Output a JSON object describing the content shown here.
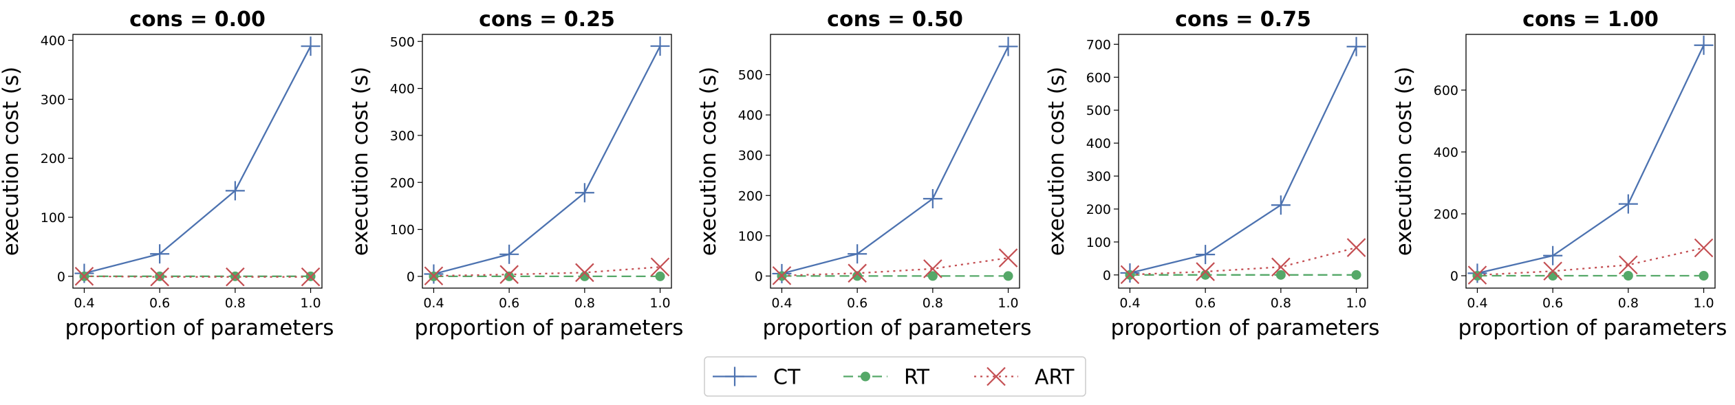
{
  "chart_data": [
    {
      "type": "line",
      "title": "cons = 0.00",
      "xlabel": "proportion of parameters",
      "ylabel": "execution cost (s)",
      "x": [
        0.4,
        0.6,
        0.8,
        1.0
      ],
      "xticks": [
        "0.4",
        "0.6",
        "0.8",
        "1.0"
      ],
      "ylim": [
        -20,
        410
      ],
      "yticks": [
        0,
        100,
        200,
        300,
        400
      ],
      "series": [
        {
          "name": "CT",
          "values": [
            5,
            38,
            145,
            390
          ]
        },
        {
          "name": "RT",
          "values": [
            0,
            0,
            0,
            0
          ]
        },
        {
          "name": "ART",
          "values": [
            0,
            -1,
            -1,
            -1
          ]
        }
      ]
    },
    {
      "type": "line",
      "title": "cons = 0.25",
      "xlabel": "proportion of parameters",
      "ylabel": "execution cost (s)",
      "x": [
        0.4,
        0.6,
        0.8,
        1.0
      ],
      "xticks": [
        "0.4",
        "0.6",
        "0.8",
        "1.0"
      ],
      "ylim": [
        -25,
        515
      ],
      "yticks": [
        0,
        100,
        200,
        300,
        400,
        500
      ],
      "series": [
        {
          "name": "CT",
          "values": [
            5,
            47,
            178,
            490
          ]
        },
        {
          "name": "RT",
          "values": [
            0,
            0,
            0,
            0
          ]
        },
        {
          "name": "ART",
          "values": [
            1,
            4,
            8,
            20
          ]
        }
      ]
    },
    {
      "type": "line",
      "title": "cons = 0.50",
      "xlabel": "proportion of parameters",
      "ylabel": "execution cost (s)",
      "x": [
        0.4,
        0.6,
        0.8,
        1.0
      ],
      "xticks": [
        "0.4",
        "0.6",
        "0.8",
        "1.0"
      ],
      "ylim": [
        -30,
        600
      ],
      "yticks": [
        0,
        100,
        200,
        300,
        400,
        500
      ],
      "series": [
        {
          "name": "CT",
          "values": [
            6,
            55,
            192,
            570
          ]
        },
        {
          "name": "RT",
          "values": [
            0,
            0,
            0,
            0
          ]
        },
        {
          "name": "ART",
          "values": [
            1,
            7,
            18,
            45
          ]
        }
      ]
    },
    {
      "type": "line",
      "title": "cons = 0.75",
      "xlabel": "proportion of parameters",
      "ylabel": "execution cost (s)",
      "x": [
        0.4,
        0.6,
        0.8,
        1.0
      ],
      "xticks": [
        "0.4",
        "0.6",
        "0.8",
        "1.0"
      ],
      "ylim": [
        -40,
        730
      ],
      "yticks": [
        0,
        100,
        200,
        300,
        400,
        500,
        600,
        700
      ],
      "series": [
        {
          "name": "CT",
          "values": [
            6,
            62,
            212,
            693
          ]
        },
        {
          "name": "RT",
          "values": [
            0,
            0,
            0,
            0
          ]
        },
        {
          "name": "ART",
          "values": [
            1,
            10,
            24,
            83
          ]
        }
      ]
    },
    {
      "type": "line",
      "title": "cons = 1.00",
      "xlabel": "proportion of parameters",
      "ylabel": "execution cost (s)",
      "x": [
        0.4,
        0.6,
        0.8,
        1.0
      ],
      "xticks": [
        "0.4",
        "0.6",
        "0.8",
        "1.0"
      ],
      "ylim": [
        -40,
        780
      ],
      "yticks": [
        0,
        200,
        400,
        600
      ],
      "series": [
        {
          "name": "CT",
          "values": [
            8,
            65,
            232,
            745
          ]
        },
        {
          "name": "RT",
          "values": [
            0,
            0,
            0,
            0
          ]
        },
        {
          "name": "ART",
          "values": [
            2,
            15,
            35,
            90
          ]
        }
      ]
    }
  ],
  "legend": {
    "items": [
      {
        "name": "CT",
        "color": "#4c72b0",
        "marker": "plus",
        "line": "solid"
      },
      {
        "name": "RT",
        "color": "#55a868",
        "marker": "circle",
        "line": "dashed"
      },
      {
        "name": "ART",
        "color": "#c44e52",
        "marker": "x",
        "line": "dotted"
      }
    ],
    "location": "bottom-center"
  },
  "series_colors": {
    "CT": "#4c72b0",
    "RT": "#55a868",
    "ART": "#c44e52"
  }
}
